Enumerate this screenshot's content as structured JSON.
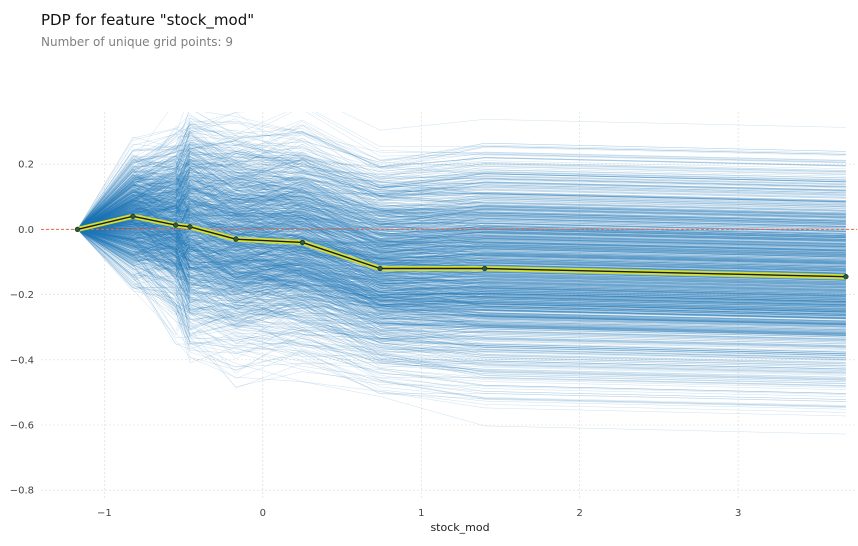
{
  "chart_data": {
    "type": "line",
    "title": "PDP for feature \"stock_mod\"",
    "subtitle": "Number of unique grid points: 9",
    "xlabel": "stock_mod",
    "ylabel": "",
    "xlim": [
      -1.4,
      3.75
    ],
    "ylim": [
      -0.83,
      0.36
    ],
    "xticks": [
      -1,
      0,
      1,
      2,
      3
    ],
    "xtick_labels": [
      "−1",
      "0",
      "1",
      "2",
      "3"
    ],
    "yticks": [
      0.2,
      0.0,
      -0.2,
      -0.4,
      -0.6,
      -0.8
    ],
    "ytick_labels": [
      "0.2",
      "0.0",
      "−0.2",
      "−0.4",
      "−0.6",
      "−0.8"
    ],
    "grid": true,
    "legend": "none",
    "series": [
      {
        "x": [
          -1.17,
          -0.82,
          -0.55,
          -0.46,
          -0.17,
          0.25,
          0.74,
          1.4,
          3.68
        ],
        "values": [
          0.0,
          0.04,
          0.013,
          0.008,
          -0.03,
          -0.04,
          -0.12,
          -0.12,
          -0.145
        ]
      }
    ],
    "colors": {
      "ice": "#1f77b4",
      "pdp_line": "#1a1a1a",
      "pdp_halo": "#d4e033",
      "pdp_marker": "#2d5a3a",
      "zero_line": "#e8674a",
      "grid": "#d9d9d9"
    }
  }
}
